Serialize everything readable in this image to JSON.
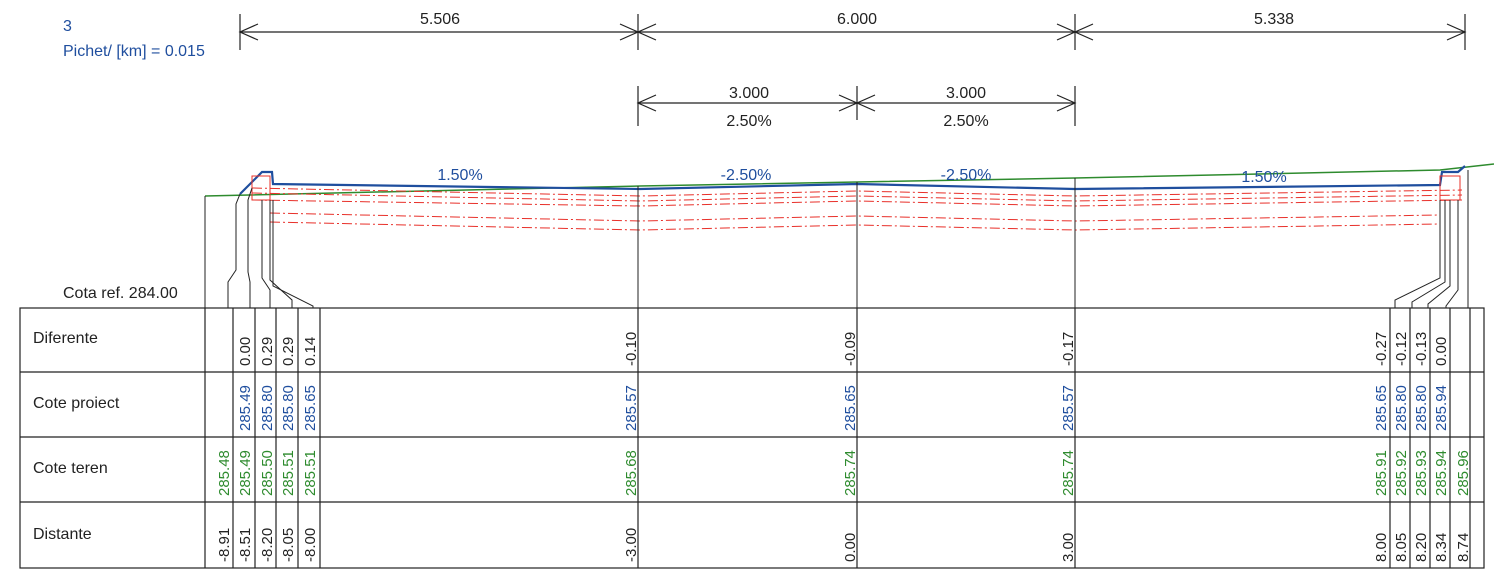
{
  "header": {
    "section_number": "3",
    "chainage_text": "Pichet/ [km]  = 0.015"
  },
  "dimensions_top": [
    "5.506",
    "6.000",
    "5.338"
  ],
  "dimensions_lanes": [
    {
      "length": "3.000",
      "slope": "2.50%"
    },
    {
      "length": "3.000",
      "slope": "2.50%"
    }
  ],
  "slope_labels": [
    "1.50%",
    "-2.50%",
    "-2.50%",
    "1.50%"
  ],
  "reference_label": "Cota ref. 284.00",
  "table": {
    "rows": [
      "Diferente",
      "Cote proiect",
      "Cote teren",
      "Distante"
    ],
    "left_columns": [
      {
        "diff": "",
        "proj": "",
        "teren": "285.48",
        "dist": "-8.91"
      },
      {
        "diff": "0.00",
        "proj": "285.49",
        "teren": "285.49",
        "dist": "-8.51"
      },
      {
        "diff": "0.29",
        "proj": "285.80",
        "teren": "285.50",
        "dist": "-8.20"
      },
      {
        "diff": "0.29",
        "proj": "285.80",
        "teren": "285.51",
        "dist": "-8.05"
      },
      {
        "diff": "0.14",
        "proj": "285.65",
        "teren": "285.51",
        "dist": "-8.00"
      }
    ],
    "center_columns": [
      {
        "diff": "-0.10",
        "proj": "285.57",
        "teren": "285.68",
        "dist": "-3.00"
      },
      {
        "diff": "-0.09",
        "proj": "285.65",
        "teren": "285.74",
        "dist": "0.00"
      },
      {
        "diff": "-0.17",
        "proj": "285.57",
        "teren": "285.74",
        "dist": "3.00"
      }
    ],
    "right_columns": [
      {
        "diff": "-0.27",
        "proj": "285.65",
        "teren": "285.91",
        "dist": "8.00"
      },
      {
        "diff": "-0.12",
        "proj": "285.80",
        "teren": "285.92",
        "dist": "8.05"
      },
      {
        "diff": "-0.13",
        "proj": "285.80",
        "teren": "285.93",
        "dist": "8.20"
      },
      {
        "diff": "0.00",
        "proj": "285.94",
        "teren": "285.94",
        "dist": "8.34"
      },
      {
        "diff": "",
        "proj": "",
        "teren": "285.96",
        "dist": "8.74"
      }
    ]
  },
  "colors": {
    "design_line": "#1f4e9e",
    "terrain_line": "#2e8b2e",
    "layer_lines": "#e8302a",
    "linework": "#222222",
    "diff_text": "#222222",
    "proj_text": "#1f4e9e",
    "teren_text": "#2e8b2e"
  }
}
